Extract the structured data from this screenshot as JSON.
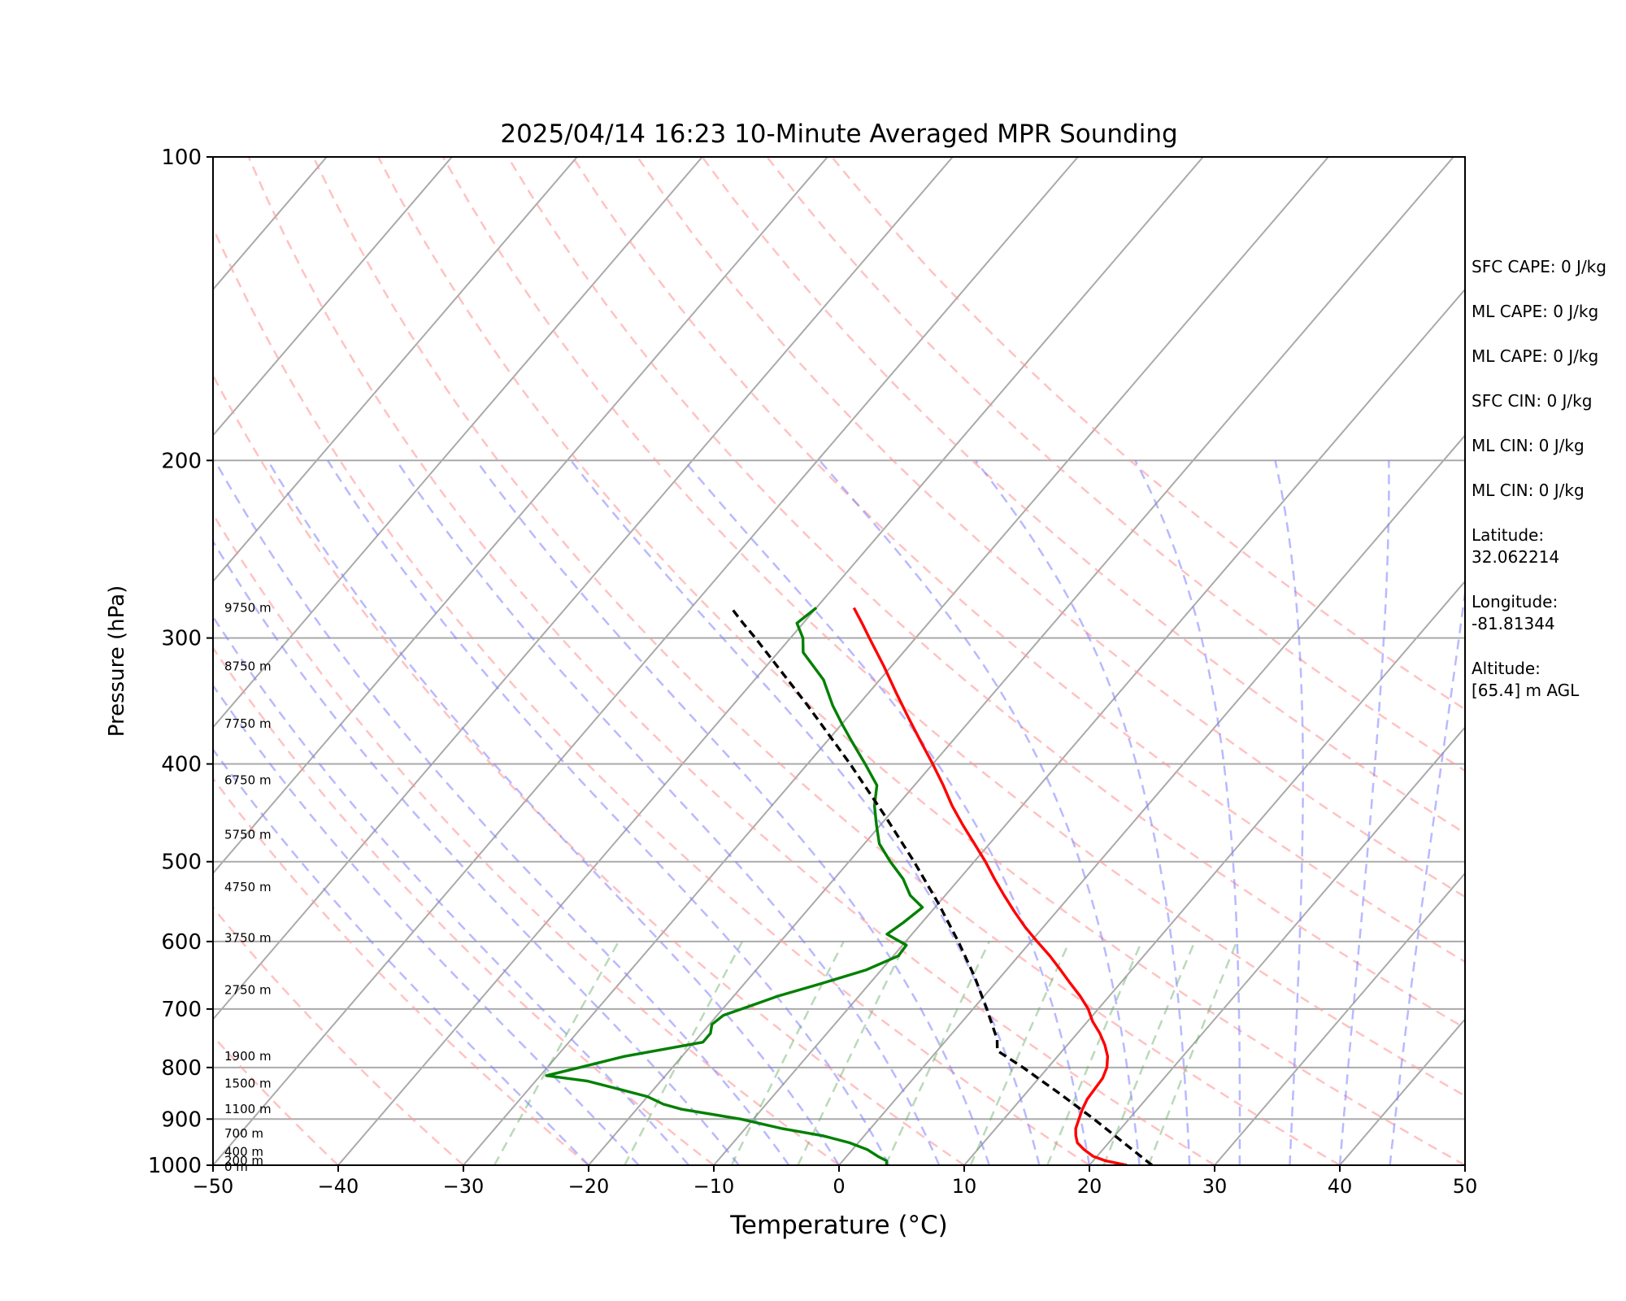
{
  "chart_data": {
    "type": "line",
    "title": "2025/04/14 16:23 10-Minute Averaged MPR Sounding",
    "xlabel": "Temperature (°C)",
    "ylabel": "Pressure (hPa)",
    "xlim": [
      -50,
      50
    ],
    "ylim": [
      1000,
      100
    ],
    "y_scale": "log",
    "grid": true,
    "x_ticks": [
      -50,
      -40,
      -30,
      -20,
      -10,
      0,
      10,
      20,
      30,
      40,
      50
    ],
    "x_tick_labels": [
      "−50",
      "−40",
      "−30",
      "−20",
      "−10",
      "0",
      "10",
      "20",
      "30",
      "40",
      "50"
    ],
    "y_ticks": [
      100,
      200,
      300,
      400,
      500,
      600,
      700,
      800,
      900,
      1000
    ],
    "y_tick_labels": [
      "100",
      "200",
      "300",
      "400",
      "500",
      "600",
      "700",
      "800",
      "900",
      "1000"
    ],
    "height_labels": [
      {
        "p": 280,
        "text": "9750 m"
      },
      {
        "p": 320,
        "text": "8750 m"
      },
      {
        "p": 365,
        "text": "7750 m"
      },
      {
        "p": 415,
        "text": "6750 m"
      },
      {
        "p": 470,
        "text": "5750 m"
      },
      {
        "p": 530,
        "text": "4750 m"
      },
      {
        "p": 595,
        "text": "3750 m"
      },
      {
        "p": 670,
        "text": "2750 m"
      },
      {
        "p": 780,
        "text": "1900 m"
      },
      {
        "p": 830,
        "text": "1500 m"
      },
      {
        "p": 880,
        "text": "1100 m"
      },
      {
        "p": 930,
        "text": "700 m"
      },
      {
        "p": 970,
        "text": "400 m"
      },
      {
        "p": 990,
        "text": "200 m"
      },
      {
        "p": 1010,
        "text": "0 m"
      }
    ],
    "series": [
      {
        "color": "#ff0000",
        "points": [
          {
            "p": 1000,
            "t": 23.0
          },
          {
            "p": 990,
            "t": 21.0
          },
          {
            "p": 980,
            "t": 19.7
          },
          {
            "p": 965,
            "t": 18.5
          },
          {
            "p": 950,
            "t": 17.5
          },
          {
            "p": 935,
            "t": 16.9
          },
          {
            "p": 920,
            "t": 16.4
          },
          {
            "p": 900,
            "t": 16.0
          },
          {
            "p": 880,
            "t": 15.6
          },
          {
            "p": 860,
            "t": 15.3
          },
          {
            "p": 840,
            "t": 15.2
          },
          {
            "p": 820,
            "t": 15.1
          },
          {
            "p": 800,
            "t": 14.7
          },
          {
            "p": 780,
            "t": 14.0
          },
          {
            "p": 760,
            "t": 13.0
          },
          {
            "p": 740,
            "t": 11.8
          },
          {
            "p": 720,
            "t": 10.4
          },
          {
            "p": 700,
            "t": 9.2
          },
          {
            "p": 680,
            "t": 7.7
          },
          {
            "p": 660,
            "t": 6.0
          },
          {
            "p": 640,
            "t": 4.3
          },
          {
            "p": 620,
            "t": 2.5
          },
          {
            "p": 600,
            "t": 0.5
          },
          {
            "p": 580,
            "t": -1.5
          },
          {
            "p": 560,
            "t": -3.4
          },
          {
            "p": 540,
            "t": -5.3
          },
          {
            "p": 520,
            "t": -7.2
          },
          {
            "p": 500,
            "t": -9.1
          },
          {
            "p": 480,
            "t": -11.2
          },
          {
            "p": 460,
            "t": -13.4
          },
          {
            "p": 440,
            "t": -15.6
          },
          {
            "p": 420,
            "t": -17.7
          },
          {
            "p": 400,
            "t": -20.0
          },
          {
            "p": 380,
            "t": -22.5
          },
          {
            "p": 360,
            "t": -25.1
          },
          {
            "p": 340,
            "t": -27.8
          },
          {
            "p": 320,
            "t": -30.6
          },
          {
            "p": 300,
            "t": -33.7
          },
          {
            "p": 290,
            "t": -35.3
          },
          {
            "p": 280,
            "t": -37.0
          }
        ]
      },
      {
        "color": "#008000",
        "points": [
          {
            "p": 1000,
            "t": 3.8
          },
          {
            "p": 990,
            "t": 3.5
          },
          {
            "p": 980,
            "t": 2.5
          },
          {
            "p": 965,
            "t": 1.2
          },
          {
            "p": 950,
            "t": -0.7
          },
          {
            "p": 935,
            "t": -3.3
          },
          {
            "p": 920,
            "t": -7.0
          },
          {
            "p": 900,
            "t": -11.0
          },
          {
            "p": 880,
            "t": -16.4
          },
          {
            "p": 870,
            "t": -18.2
          },
          {
            "p": 855,
            "t": -20.0
          },
          {
            "p": 840,
            "t": -22.9
          },
          {
            "p": 825,
            "t": -25.9
          },
          {
            "p": 815,
            "t": -29.5
          },
          {
            "p": 800,
            "t": -27.4
          },
          {
            "p": 780,
            "t": -24.6
          },
          {
            "p": 755,
            "t": -19.3
          },
          {
            "p": 740,
            "t": -19.3
          },
          {
            "p": 725,
            "t": -19.8
          },
          {
            "p": 710,
            "t": -19.5
          },
          {
            "p": 695,
            "t": -18.0
          },
          {
            "p": 680,
            "t": -16.5
          },
          {
            "p": 660,
            "t": -13.8
          },
          {
            "p": 640,
            "t": -11.2
          },
          {
            "p": 620,
            "t": -9.6
          },
          {
            "p": 605,
            "t": -9.7
          },
          {
            "p": 590,
            "t": -12.0
          },
          {
            "p": 575,
            "t": -11.5
          },
          {
            "p": 555,
            "t": -11.0
          },
          {
            "p": 540,
            "t": -12.8
          },
          {
            "p": 520,
            "t": -14.5
          },
          {
            "p": 500,
            "t": -16.7
          },
          {
            "p": 480,
            "t": -18.8
          },
          {
            "p": 460,
            "t": -20.3
          },
          {
            "p": 440,
            "t": -21.8
          },
          {
            "p": 420,
            "t": -23.0
          },
          {
            "p": 400,
            "t": -25.4
          },
          {
            "p": 380,
            "t": -28.0
          },
          {
            "p": 365,
            "t": -30.0
          },
          {
            "p": 350,
            "t": -32.0
          },
          {
            "p": 330,
            "t": -34.5
          },
          {
            "p": 310,
            "t": -38.0
          },
          {
            "p": 300,
            "t": -39.0
          },
          {
            "p": 290,
            "t": -40.5
          },
          {
            "p": 280,
            "t": -40.0
          }
        ]
      },
      {
        "color": "#000000",
        "dashed": true,
        "points": [
          {
            "p": 1000,
            "t": 25.0
          },
          {
            "p": 950,
            "t": 21.2
          },
          {
            "p": 900,
            "t": 17.2
          },
          {
            "p": 850,
            "t": 12.8
          },
          {
            "p": 800,
            "t": 8.0
          },
          {
            "p": 770,
            "t": 4.8
          },
          {
            "p": 750,
            "t": 4.0
          },
          {
            "p": 700,
            "t": 1.1
          },
          {
            "p": 650,
            "t": -2.1
          },
          {
            "p": 600,
            "t": -5.8
          },
          {
            "p": 550,
            "t": -10.0
          },
          {
            "p": 500,
            "t": -14.8
          },
          {
            "p": 450,
            "t": -20.3
          },
          {
            "p": 400,
            "t": -26.6
          },
          {
            "p": 350,
            "t": -34.0
          },
          {
            "p": 300,
            "t": -42.8
          },
          {
            "p": 290,
            "t": -44.8
          },
          {
            "p": 280,
            "t": -46.8
          }
        ]
      }
    ]
  },
  "side_panel": [
    {
      "label": "SFC CAPE: 0 J/kg"
    },
    {
      "label": "ML CAPE: 0 J/kg"
    },
    {
      "label": "ML CAPE: 0 J/kg"
    },
    {
      "label": "SFC CIN: 0 J/kg"
    },
    {
      "label": "ML CIN: 0 J/kg"
    },
    {
      "label": "ML CIN: 0 J/kg"
    },
    {
      "label": "Latitude:",
      "value": "32.062214"
    },
    {
      "label": "Longitude:",
      "value": "-81.81344"
    },
    {
      "label": "Altitude:",
      "value": "[65.4] m AGL"
    }
  ]
}
